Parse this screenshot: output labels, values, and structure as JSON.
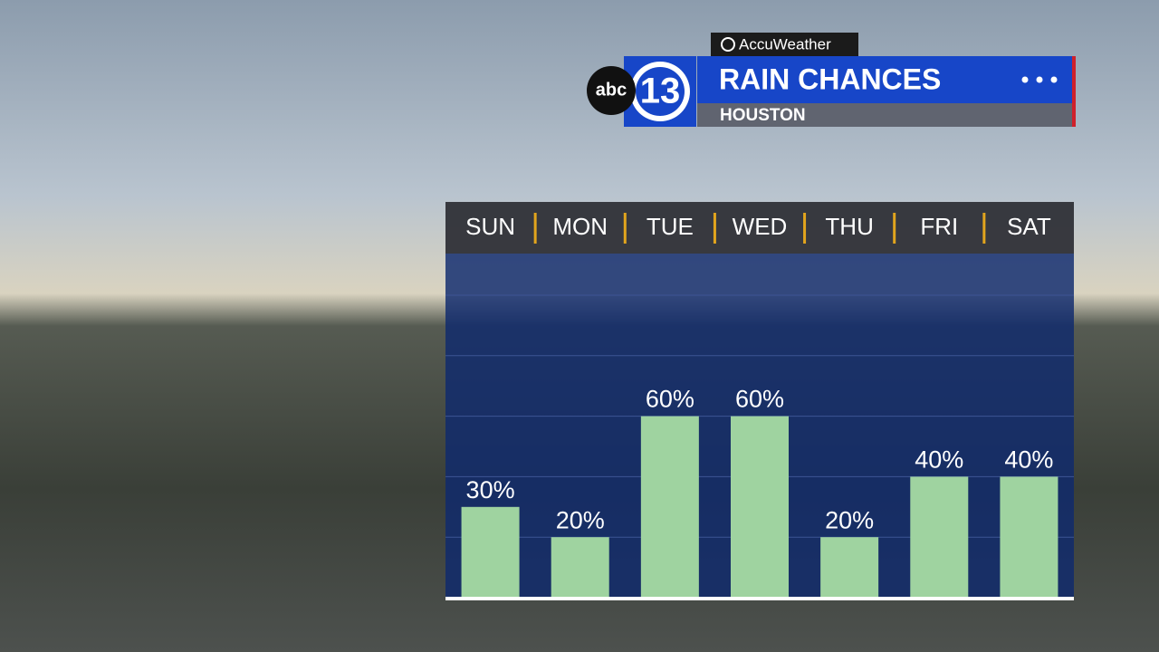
{
  "chart_data": {
    "type": "bar",
    "provider": "AccuWeather",
    "network": "abc",
    "channel": "13",
    "title": "RAIN CHANCES",
    "subtitle": "HOUSTON",
    "categories": [
      "SUN",
      "MON",
      "TUE",
      "WED",
      "THU",
      "FRI",
      "SAT"
    ],
    "values": [
      30,
      20,
      60,
      60,
      20,
      40,
      40
    ],
    "value_labels": [
      "30%",
      "20%",
      "60%",
      "60%",
      "20%",
      "40%",
      "40%"
    ],
    "color": "#9fd3a0",
    "ylim": [
      0,
      100
    ],
    "yticks": [
      20,
      40,
      60,
      80,
      100
    ],
    "grid": true
  }
}
